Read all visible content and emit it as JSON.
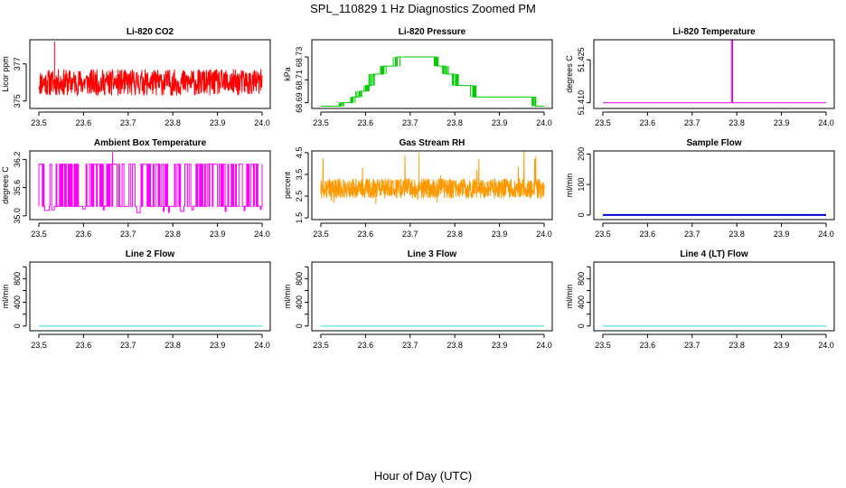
{
  "title": "SPL_110829  1 Hz Diagnostics Zoomed PM",
  "xlabel": "Hour of Day (UTC)",
  "x_ticks": [
    23.5,
    23.6,
    23.7,
    23.8,
    23.9,
    24.0
  ],
  "x_tick_labels": [
    "23.5",
    "23.6",
    "23.7",
    "23.8",
    "23.9",
    "24.0"
  ],
  "chart_data": [
    {
      "type": "line",
      "title": "Li-820 CO2",
      "ylabel": "Licor ppm",
      "color": "#ff0000",
      "xlim": [
        23.5,
        24.0
      ],
      "ylim": [
        374.6,
        378.3
      ],
      "y_ticks": [
        375,
        377
      ],
      "y_tick_labels": [
        "375",
        "377"
      ],
      "pattern": "noise",
      "base": 376.0,
      "spread": 0.7,
      "spike": {
        "x": 23.535,
        "y": 378.2
      },
      "series": [
        {
          "name": "CO2",
          "x": [
            23.5,
            24.0
          ],
          "y": [
            376.0,
            376.0
          ]
        }
      ]
    },
    {
      "type": "line",
      "title": "Li-820 Pressure",
      "ylabel": "kPa",
      "color": "#00cc00",
      "xlim": [
        23.5,
        24.0
      ],
      "ylim": [
        68.685,
        68.745
      ],
      "y_ticks": [
        68.69,
        68.71,
        68.73
      ],
      "y_tick_labels": [
        "68.69",
        "68.71",
        "68.73"
      ],
      "pattern": "steps",
      "series": [
        {
          "name": "Pressure",
          "x": [
            23.5,
            23.545,
            23.57,
            23.585,
            23.6,
            23.615,
            23.64,
            23.67,
            23.69,
            23.74,
            23.76,
            23.78,
            23.8,
            23.84,
            23.94,
            23.98,
            24.0
          ],
          "y": [
            68.687,
            68.69,
            68.695,
            68.7,
            68.705,
            68.715,
            68.722,
            68.73,
            68.73,
            68.73,
            68.722,
            68.715,
            68.705,
            68.695,
            68.695,
            68.687,
            68.687
          ]
        }
      ]
    },
    {
      "type": "line",
      "title": "Li-820 Temperature",
      "ylabel": "degrees C",
      "color": "#dd00dd",
      "xlim": [
        23.5,
        24.0
      ],
      "ylim": [
        51.408,
        51.432
      ],
      "y_ticks": [
        51.41,
        51.425
      ],
      "y_tick_labels": [
        "51.410",
        "51.425"
      ],
      "pattern": "flat",
      "series": [
        {
          "name": "Temperature",
          "x": [
            23.5,
            23.788,
            23.788,
            23.7905,
            23.7905,
            24.0
          ],
          "y": [
            51.41,
            51.41,
            51.432,
            51.432,
            51.41,
            51.41
          ]
        }
      ]
    },
    {
      "type": "line",
      "title": "Ambient Box Temperature",
      "ylabel": "degrees C",
      "color": "#ff00ff",
      "xlim": [
        23.5,
        24.0
      ],
      "ylim": [
        34.92,
        36.38
      ],
      "y_ticks": [
        35.0,
        35.6,
        36.2
      ],
      "y_tick_labels": [
        "35.0",
        "35.6",
        "36.2"
      ],
      "pattern": "square",
      "low": 35.2,
      "high": 36.1,
      "spike": {
        "x": 23.665,
        "y": 36.35
      },
      "series": [
        {
          "name": "Box Temp",
          "x": [
            23.5,
            24.0
          ],
          "y": [
            35.2,
            36.1
          ]
        }
      ]
    },
    {
      "type": "line",
      "title": "Gas Stream RH",
      "ylabel": "percent",
      "color": "#ff9900",
      "xlim": [
        23.5,
        24.0
      ],
      "ylim": [
        1.42,
        4.58
      ],
      "y_ticks": [
        1.5,
        2.5,
        3.5,
        4.5
      ],
      "y_tick_labels": [
        "1.5",
        "2.5",
        "3.5",
        "4.5"
      ],
      "pattern": "band",
      "base": 2.85,
      "spread": 0.45,
      "spike": {
        "x": 23.72,
        "y": 4.5
      },
      "series": [
        {
          "name": "RH",
          "x": [
            23.5,
            24.0
          ],
          "y": [
            2.85,
            2.85
          ]
        }
      ]
    },
    {
      "type": "line",
      "title": "Sample Flow",
      "ylabel": "ml/min",
      "color": "#0000cc",
      "xlim": [
        23.5,
        24.0
      ],
      "ylim": [
        -15,
        210
      ],
      "y_ticks": [
        0,
        100,
        200
      ],
      "y_tick_labels": [
        "0",
        "100",
        "200"
      ],
      "pattern": "flat",
      "line_width": 2,
      "series": [
        {
          "name": "Sample Flow",
          "x": [
            23.5,
            24.0
          ],
          "y": [
            0,
            0
          ]
        }
      ]
    },
    {
      "type": "line",
      "title": "Line 2 Flow",
      "ylabel": "ml/min",
      "color": "#33dddd",
      "xlim": [
        23.5,
        24.0
      ],
      "ylim": [
        -80,
        1080
      ],
      "y_ticks": [
        0,
        200,
        400,
        600,
        800,
        1000
      ],
      "y_tick_labels": [
        "0",
        "",
        "400",
        "",
        "800",
        ""
      ],
      "pattern": "flat",
      "series": [
        {
          "name": "Line 2 Flow",
          "x": [
            23.5,
            24.0
          ],
          "y": [
            0,
            0
          ]
        }
      ]
    },
    {
      "type": "line",
      "title": "Line 3 Flow",
      "ylabel": "ml/min",
      "color": "#33dddd",
      "xlim": [
        23.5,
        24.0
      ],
      "ylim": [
        -80,
        1080
      ],
      "y_ticks": [
        0,
        200,
        400,
        600,
        800,
        1000
      ],
      "y_tick_labels": [
        "0",
        "",
        "400",
        "",
        "800",
        ""
      ],
      "pattern": "flat",
      "series": [
        {
          "name": "Line 3 Flow",
          "x": [
            23.5,
            24.0
          ],
          "y": [
            0,
            0
          ]
        }
      ]
    },
    {
      "type": "line",
      "title": "Line 4 (LT) Flow",
      "ylabel": "ml/min",
      "color": "#33dddd",
      "xlim": [
        23.5,
        24.0
      ],
      "ylim": [
        -80,
        1080
      ],
      "y_ticks": [
        0,
        200,
        400,
        600,
        800,
        1000
      ],
      "y_tick_labels": [
        "0",
        "",
        "400",
        "",
        "800",
        ""
      ],
      "pattern": "flat",
      "series": [
        {
          "name": "Line 4 Flow",
          "x": [
            23.5,
            24.0
          ],
          "y": [
            0,
            0
          ]
        }
      ]
    }
  ]
}
